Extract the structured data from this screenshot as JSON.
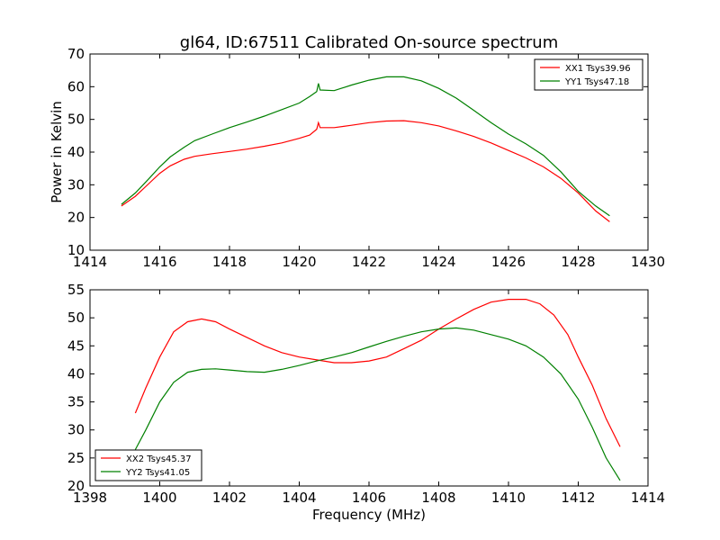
{
  "chart_data": [
    {
      "type": "line",
      "title": "gl64, ID:67511 Calibrated On-source spectrum",
      "xlabel": "",
      "ylabel": "Power in Kelvin",
      "xlim": [
        1414,
        1430
      ],
      "ylim": [
        10,
        70
      ],
      "xticks": [
        "1414",
        "1416",
        "1418",
        "1420",
        "1422",
        "1424",
        "1426",
        "1428",
        "1430"
      ],
      "yticks": [
        "10",
        "20",
        "30",
        "40",
        "50",
        "60",
        "70"
      ],
      "grid": false,
      "legend_position": "top-right",
      "series": [
        {
          "name": "XX1 Tsys39.96",
          "color": "#ff0000",
          "points": [
            [
              1414.9,
              23.5
            ],
            [
              1415.3,
              26.5
            ],
            [
              1415.7,
              30.5
            ],
            [
              1416.0,
              33.5
            ],
            [
              1416.3,
              35.8
            ],
            [
              1416.7,
              37.8
            ],
            [
              1417.0,
              38.7
            ],
            [
              1417.5,
              39.5
            ],
            [
              1418.0,
              40.2
            ],
            [
              1418.5,
              40.9
            ],
            [
              1419.0,
              41.8
            ],
            [
              1419.5,
              42.8
            ],
            [
              1420.0,
              44.2
            ],
            [
              1420.3,
              45.2
            ],
            [
              1420.5,
              47.0
            ],
            [
              1420.55,
              49.0
            ],
            [
              1420.6,
              47.5
            ],
            [
              1421.0,
              47.5
            ],
            [
              1421.5,
              48.2
            ],
            [
              1422.0,
              49.0
            ],
            [
              1422.5,
              49.5
            ],
            [
              1423.0,
              49.6
            ],
            [
              1423.5,
              49.0
            ],
            [
              1424.0,
              48.0
            ],
            [
              1424.5,
              46.5
            ],
            [
              1425.0,
              44.8
            ],
            [
              1425.5,
              42.8
            ],
            [
              1426.0,
              40.5
            ],
            [
              1426.5,
              38.2
            ],
            [
              1427.0,
              35.5
            ],
            [
              1427.5,
              32.0
            ],
            [
              1428.0,
              27.5
            ],
            [
              1428.5,
              22.0
            ],
            [
              1428.9,
              18.7
            ]
          ]
        },
        {
          "name": "YY1 Tsys47.18",
          "color": "#008000",
          "points": [
            [
              1414.9,
              24.0
            ],
            [
              1415.3,
              27.5
            ],
            [
              1415.7,
              32.0
            ],
            [
              1416.0,
              35.5
            ],
            [
              1416.3,
              38.5
            ],
            [
              1416.7,
              41.5
            ],
            [
              1417.0,
              43.5
            ],
            [
              1417.5,
              45.5
            ],
            [
              1418.0,
              47.5
            ],
            [
              1418.5,
              49.2
            ],
            [
              1419.0,
              51.0
            ],
            [
              1419.5,
              53.0
            ],
            [
              1420.0,
              55.0
            ],
            [
              1420.3,
              57.0
            ],
            [
              1420.5,
              58.5
            ],
            [
              1420.55,
              61.0
            ],
            [
              1420.6,
              59.0
            ],
            [
              1421.0,
              58.8
            ],
            [
              1421.5,
              60.5
            ],
            [
              1422.0,
              62.0
            ],
            [
              1422.5,
              63.0
            ],
            [
              1423.0,
              63.0
            ],
            [
              1423.5,
              61.8
            ],
            [
              1424.0,
              59.5
            ],
            [
              1424.5,
              56.5
            ],
            [
              1425.0,
              52.8
            ],
            [
              1425.5,
              49.0
            ],
            [
              1426.0,
              45.5
            ],
            [
              1426.5,
              42.5
            ],
            [
              1427.0,
              39.0
            ],
            [
              1427.5,
              34.0
            ],
            [
              1428.0,
              28.0
            ],
            [
              1428.5,
              23.5
            ],
            [
              1428.9,
              20.5
            ]
          ]
        }
      ]
    },
    {
      "type": "line",
      "title": "",
      "xlabel": "Frequency (MHz)",
      "ylabel": "",
      "xlim": [
        1398,
        1414
      ],
      "ylim": [
        20,
        55
      ],
      "xticks": [
        "1398",
        "1400",
        "1402",
        "1404",
        "1406",
        "1408",
        "1410",
        "1412",
        "1414"
      ],
      "yticks": [
        "20",
        "25",
        "30",
        "35",
        "40",
        "45",
        "50",
        "55"
      ],
      "grid": false,
      "legend_position": "bottom-left",
      "series": [
        {
          "name": "XX2 Tsys45.37",
          "color": "#ff0000",
          "points": [
            [
              1399.3,
              33.0
            ],
            [
              1399.6,
              37.5
            ],
            [
              1400.0,
              43.0
            ],
            [
              1400.4,
              47.5
            ],
            [
              1400.8,
              49.3
            ],
            [
              1401.2,
              49.8
            ],
            [
              1401.6,
              49.3
            ],
            [
              1402.0,
              48.0
            ],
            [
              1402.5,
              46.5
            ],
            [
              1403.0,
              45.0
            ],
            [
              1403.5,
              43.8
            ],
            [
              1404.0,
              43.0
            ],
            [
              1404.5,
              42.5
            ],
            [
              1405.0,
              42.0
            ],
            [
              1405.5,
              42.0
            ],
            [
              1406.0,
              42.3
            ],
            [
              1406.5,
              43.0
            ],
            [
              1407.0,
              44.5
            ],
            [
              1407.5,
              46.0
            ],
            [
              1408.0,
              48.0
            ],
            [
              1408.5,
              49.8
            ],
            [
              1409.0,
              51.5
            ],
            [
              1409.5,
              52.8
            ],
            [
              1410.0,
              53.3
            ],
            [
              1410.5,
              53.3
            ],
            [
              1410.9,
              52.5
            ],
            [
              1411.3,
              50.5
            ],
            [
              1411.7,
              47.0
            ],
            [
              1412.0,
              43.0
            ],
            [
              1412.4,
              38.0
            ],
            [
              1412.8,
              32.0
            ],
            [
              1413.2,
              27.0
            ]
          ]
        },
        {
          "name": "YY2 Tsys41.05",
          "color": "#008000",
          "points": [
            [
              1399.3,
              26.5
            ],
            [
              1399.6,
              30.0
            ],
            [
              1400.0,
              35.0
            ],
            [
              1400.4,
              38.5
            ],
            [
              1400.8,
              40.3
            ],
            [
              1401.2,
              40.8
            ],
            [
              1401.6,
              40.9
            ],
            [
              1402.0,
              40.7
            ],
            [
              1402.5,
              40.4
            ],
            [
              1403.0,
              40.3
            ],
            [
              1403.5,
              40.8
            ],
            [
              1404.0,
              41.5
            ],
            [
              1404.5,
              42.3
            ],
            [
              1405.0,
              43.0
            ],
            [
              1405.5,
              43.8
            ],
            [
              1406.0,
              44.8
            ],
            [
              1406.5,
              45.8
            ],
            [
              1407.0,
              46.7
            ],
            [
              1407.5,
              47.5
            ],
            [
              1408.0,
              48.0
            ],
            [
              1408.5,
              48.2
            ],
            [
              1409.0,
              47.8
            ],
            [
              1409.5,
              47.0
            ],
            [
              1410.0,
              46.2
            ],
            [
              1410.5,
              45.0
            ],
            [
              1411.0,
              43.0
            ],
            [
              1411.5,
              40.0
            ],
            [
              1412.0,
              35.5
            ],
            [
              1412.4,
              30.5
            ],
            [
              1412.8,
              25.0
            ],
            [
              1413.2,
              21.0
            ]
          ]
        }
      ]
    }
  ]
}
